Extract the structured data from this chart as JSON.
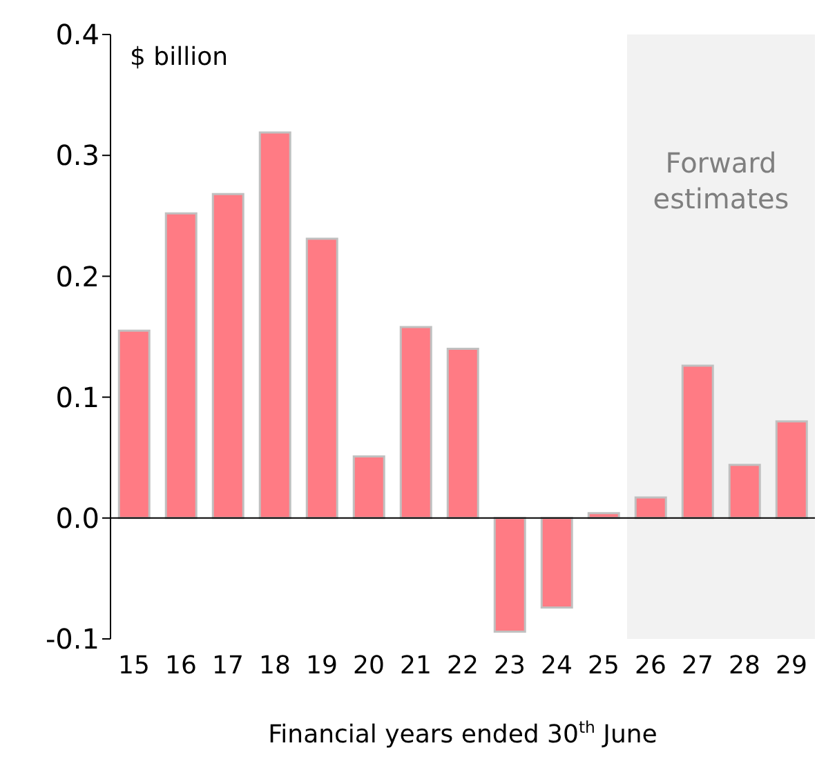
{
  "chart_data": {
    "type": "bar",
    "ylabel": "$ billion",
    "xlabel": "Financial years ended 30$^{th}$ June",
    "categories": [
      "15",
      "16",
      "17",
      "18",
      "19",
      "20",
      "21",
      "22",
      "23",
      "24",
      "25",
      "26",
      "27",
      "28",
      "29"
    ],
    "values": [
      0.155,
      0.252,
      0.268,
      0.319,
      0.231,
      0.051,
      0.158,
      0.14,
      -0.094,
      -0.074,
      0.004,
      0.017,
      0.126,
      0.044,
      0.08
    ],
    "color": "#ff7b84",
    "ylim": [
      -0.1,
      0.4
    ],
    "yticks": [
      {
        "value": -0.1,
        "label": "-0.1"
      },
      {
        "value": 0,
        "label": "0.0"
      },
      {
        "value": 0.1,
        "label": "0.1"
      },
      {
        "value": 0.2,
        "label": "0.2"
      },
      {
        "value": 0.3,
        "label": "0.3"
      },
      {
        "value": 0.4,
        "label": "0.4"
      }
    ],
    "bands": [
      {
        "axis": "x",
        "from": "26",
        "to": "29",
        "label": "Forward estimates",
        "color": "#f2f2f2"
      }
    ],
    "legend": false
  }
}
